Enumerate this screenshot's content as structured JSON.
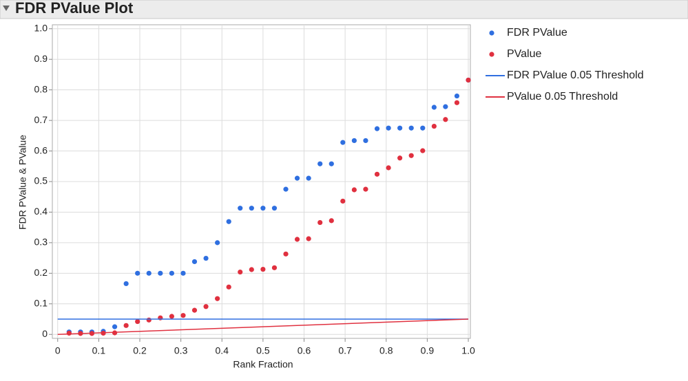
{
  "chart_data": {
    "type": "scatter",
    "title": "FDR PValue Plot",
    "x_label": "Rank Fraction",
    "y_label": "FDR PValue & PValue",
    "xlim": [
      -0.013,
      1.005
    ],
    "ylim": [
      -0.013,
      1.013
    ],
    "xticks": [
      0,
      0.1,
      0.2,
      0.3,
      0.4,
      0.5,
      0.6,
      0.7,
      0.8,
      0.9,
      {
        "value": 1,
        "label": "1.0"
      }
    ],
    "yticks": [
      0,
      0.1,
      0.2,
      0.3,
      0.4,
      0.5,
      0.6,
      0.7,
      0.8,
      0.9,
      {
        "value": 1,
        "label": "1.0"
      }
    ],
    "grid": true,
    "x": [
      0.0278,
      0.0556,
      0.0833,
      0.1111,
      0.1389,
      0.1667,
      0.1944,
      0.2222,
      0.25,
      0.2778,
      0.3056,
      0.3333,
      0.3611,
      0.3889,
      0.4167,
      0.4444,
      0.4722,
      0.5,
      0.5278,
      0.5556,
      0.5833,
      0.6111,
      0.6389,
      0.6667,
      0.6944,
      0.7222,
      0.75,
      0.7778,
      0.8056,
      0.8333,
      0.8611,
      0.8889,
      0.9167,
      0.9444,
      0.9722,
      1
    ],
    "series": [
      {
        "name": "FDR PValue",
        "color": "#2f6fe0",
        "mark": "dot",
        "values": [
          0.008,
          0.008,
          0.008,
          0.01,
          0.025,
          0.166,
          0.2,
          0.2,
          0.2,
          0.2,
          0.2,
          0.238,
          0.249,
          0.3,
          0.369,
          0.413,
          0.413,
          0.413,
          0.413,
          0.475,
          0.511,
          0.511,
          0.558,
          0.558,
          0.628,
          0.634,
          0.634,
          0.673,
          0.675,
          0.675,
          0.675,
          0.675,
          0.743,
          0.745,
          0.78,
          0.832
        ]
      },
      {
        "name": "PValue",
        "color": "#e0303f",
        "mark": "dot",
        "values": [
          0.004,
          0.003,
          0.003,
          0.004,
          0.005,
          0.029,
          0.042,
          0.047,
          0.054,
          0.059,
          0.062,
          0.079,
          0.091,
          0.117,
          0.155,
          0.204,
          0.212,
          0.213,
          0.218,
          0.263,
          0.311,
          0.313,
          0.366,
          0.372,
          0.436,
          0.473,
          0.475,
          0.524,
          0.545,
          0.577,
          0.585,
          0.601,
          0.681,
          0.703,
          0.758,
          0.832
        ]
      },
      {
        "name": "FDR PValue 0.05 Threshold",
        "color": "#2f6fe0",
        "mark": "line",
        "x": [
          0,
          1
        ],
        "values": [
          0.05,
          0.05
        ]
      },
      {
        "name": "PValue 0.05 Threshold",
        "color": "#e0303f",
        "mark": "line",
        "x": [
          0,
          1
        ],
        "values": [
          0,
          0.05
        ]
      }
    ]
  }
}
